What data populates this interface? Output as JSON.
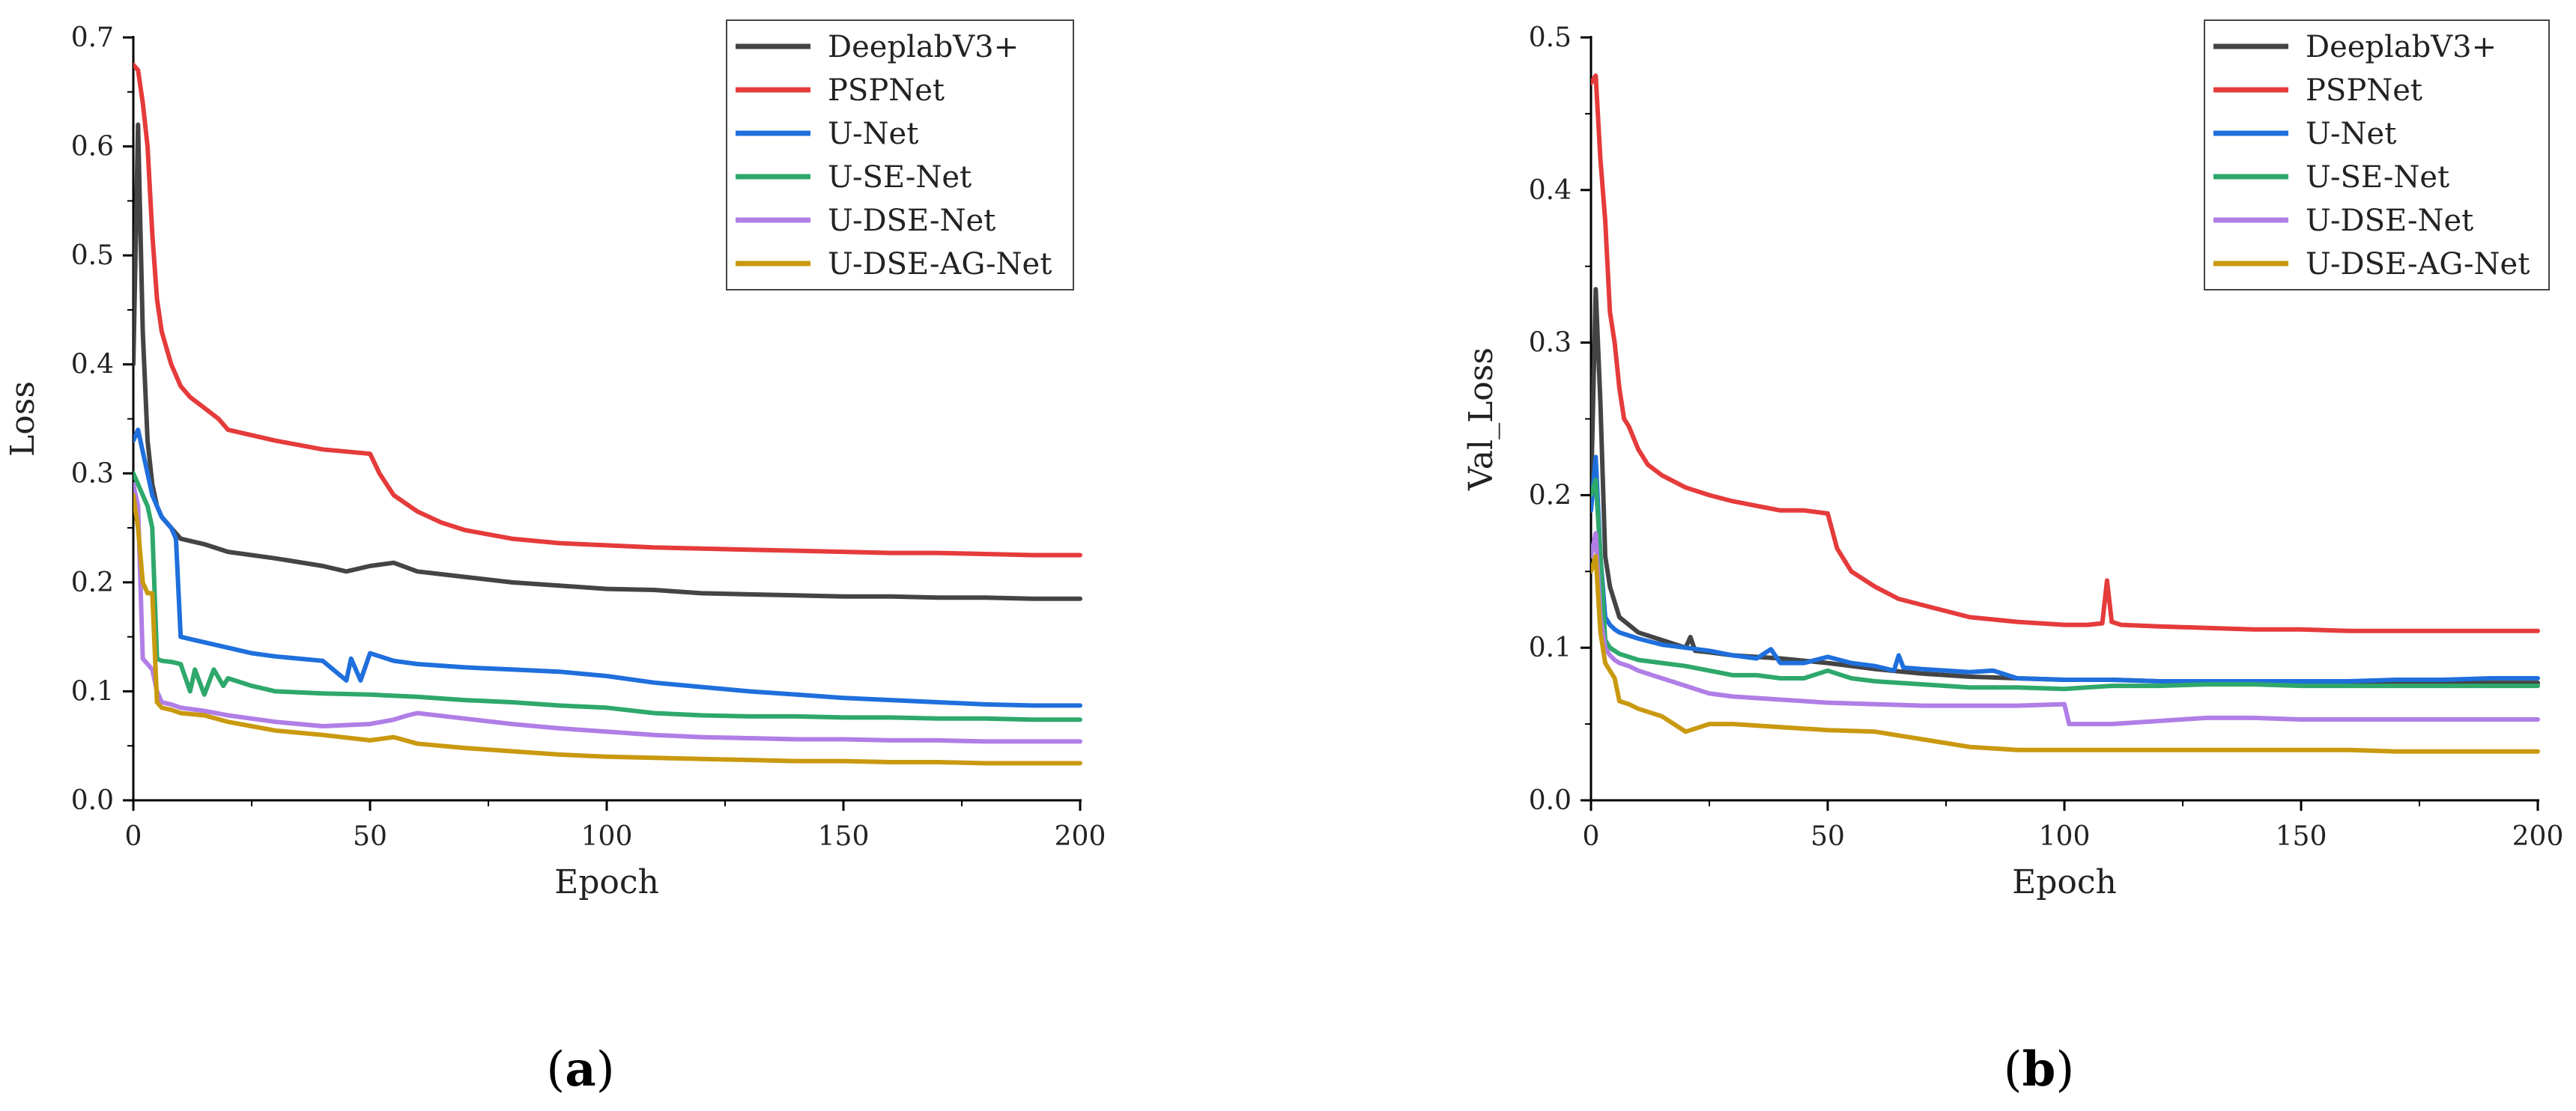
{
  "chart_data": [
    {
      "type": "line",
      "panel_label": "(a)",
      "title": "",
      "xlabel": "Epoch",
      "ylabel": "Loss",
      "xlim": [
        0,
        200
      ],
      "ylim": [
        0,
        0.7
      ],
      "xticks": [
        0,
        50,
        100,
        150,
        200
      ],
      "yticks": [
        0.0,
        0.1,
        0.2,
        0.3,
        0.4,
        0.5,
        0.6,
        0.7
      ],
      "ytick_labels": [
        "0.0",
        "0.1",
        "0.2",
        "0.3",
        "0.4",
        "0.5",
        "0.6",
        "0.7"
      ],
      "legend_position": "top-right",
      "series": [
        {
          "name": "DeeplabV3+",
          "color": "#444444",
          "x": [
            0,
            1,
            2,
            3,
            4,
            5,
            6,
            8,
            10,
            15,
            20,
            30,
            40,
            45,
            50,
            55,
            60,
            70,
            80,
            90,
            100,
            110,
            120,
            130,
            140,
            150,
            160,
            170,
            180,
            190,
            200
          ],
          "y": [
            0.4,
            0.62,
            0.43,
            0.33,
            0.29,
            0.27,
            0.26,
            0.25,
            0.24,
            0.235,
            0.228,
            0.222,
            0.215,
            0.21,
            0.215,
            0.218,
            0.21,
            0.205,
            0.2,
            0.197,
            0.194,
            0.193,
            0.19,
            0.189,
            0.188,
            0.187,
            0.187,
            0.186,
            0.186,
            0.185,
            0.185
          ]
        },
        {
          "name": "PSPNet",
          "color": "#e53b3b",
          "x": [
            0,
            1,
            2,
            3,
            4,
            5,
            6,
            8,
            10,
            12,
            15,
            18,
            20,
            25,
            30,
            35,
            40,
            45,
            50,
            52,
            55,
            60,
            65,
            70,
            80,
            90,
            100,
            110,
            120,
            130,
            140,
            150,
            160,
            170,
            180,
            190,
            200
          ],
          "y": [
            0.675,
            0.67,
            0.64,
            0.6,
            0.52,
            0.46,
            0.43,
            0.4,
            0.38,
            0.37,
            0.36,
            0.35,
            0.34,
            0.335,
            0.33,
            0.326,
            0.322,
            0.32,
            0.318,
            0.3,
            0.28,
            0.265,
            0.255,
            0.248,
            0.24,
            0.236,
            0.234,
            0.232,
            0.231,
            0.23,
            0.229,
            0.228,
            0.227,
            0.227,
            0.226,
            0.225,
            0.225
          ]
        },
        {
          "name": "U-Net",
          "color": "#1f6fdc",
          "x": [
            0,
            1,
            2,
            3,
            4,
            5,
            6,
            8,
            9,
            10,
            12,
            15,
            20,
            25,
            30,
            40,
            45,
            46,
            48,
            50,
            55,
            60,
            70,
            80,
            90,
            100,
            110,
            120,
            130,
            140,
            150,
            160,
            170,
            180,
            190,
            200
          ],
          "y": [
            0.33,
            0.34,
            0.32,
            0.3,
            0.28,
            0.27,
            0.26,
            0.25,
            0.24,
            0.15,
            0.148,
            0.145,
            0.14,
            0.135,
            0.132,
            0.128,
            0.11,
            0.13,
            0.11,
            0.135,
            0.128,
            0.125,
            0.122,
            0.12,
            0.118,
            0.114,
            0.108,
            0.104,
            0.1,
            0.097,
            0.094,
            0.092,
            0.09,
            0.088,
            0.087,
            0.087
          ]
        },
        {
          "name": "U-SE-Net",
          "color": "#2ea86b",
          "x": [
            0,
            1,
            2,
            3,
            4,
            5,
            6,
            8,
            10,
            12,
            13,
            15,
            17,
            19,
            20,
            25,
            30,
            40,
            50,
            60,
            70,
            80,
            90,
            100,
            110,
            120,
            130,
            140,
            150,
            160,
            170,
            180,
            190,
            200
          ],
          "y": [
            0.3,
            0.29,
            0.28,
            0.27,
            0.25,
            0.13,
            0.128,
            0.127,
            0.125,
            0.1,
            0.12,
            0.097,
            0.12,
            0.105,
            0.112,
            0.105,
            0.1,
            0.098,
            0.097,
            0.095,
            0.092,
            0.09,
            0.087,
            0.085,
            0.08,
            0.078,
            0.077,
            0.077,
            0.076,
            0.076,
            0.075,
            0.075,
            0.074,
            0.074
          ]
        },
        {
          "name": "U-DSE-Net",
          "color": "#b07ee6",
          "x": [
            0,
            1,
            2,
            3,
            4,
            5,
            6,
            8,
            10,
            15,
            20,
            30,
            40,
            50,
            55,
            58,
            60,
            70,
            80,
            90,
            100,
            110,
            120,
            130,
            140,
            150,
            160,
            170,
            180,
            190,
            200
          ],
          "y": [
            0.29,
            0.27,
            0.13,
            0.125,
            0.12,
            0.1,
            0.09,
            0.088,
            0.085,
            0.082,
            0.078,
            0.072,
            0.068,
            0.07,
            0.074,
            0.078,
            0.08,
            0.075,
            0.07,
            0.066,
            0.063,
            0.06,
            0.058,
            0.057,
            0.056,
            0.056,
            0.055,
            0.055,
            0.054,
            0.054,
            0.054
          ]
        },
        {
          "name": "U-DSE-AG-Net",
          "color": "#c9990f",
          "x": [
            0,
            1,
            2,
            3,
            4,
            5,
            6,
            8,
            10,
            15,
            20,
            25,
            30,
            40,
            50,
            55,
            60,
            70,
            80,
            90,
            100,
            110,
            120,
            130,
            140,
            150,
            160,
            170,
            180,
            190,
            200
          ],
          "y": [
            0.28,
            0.25,
            0.2,
            0.19,
            0.19,
            0.09,
            0.085,
            0.083,
            0.08,
            0.078,
            0.072,
            0.068,
            0.064,
            0.06,
            0.055,
            0.058,
            0.052,
            0.048,
            0.045,
            0.042,
            0.04,
            0.039,
            0.038,
            0.037,
            0.036,
            0.036,
            0.035,
            0.035,
            0.034,
            0.034,
            0.034
          ]
        }
      ]
    },
    {
      "type": "line",
      "panel_label": "(b)",
      "title": "",
      "xlabel": "Epoch",
      "ylabel": "Val_Loss",
      "xlim": [
        0,
        200
      ],
      "ylim": [
        0,
        0.5
      ],
      "xticks": [
        0,
        50,
        100,
        150,
        200
      ],
      "yticks": [
        0.0,
        0.1,
        0.2,
        0.3,
        0.4,
        0.5
      ],
      "ytick_labels": [
        "0.0",
        "0.1",
        "0.2",
        "0.3",
        "0.4",
        "0.5"
      ],
      "legend_position": "top-right",
      "series": [
        {
          "name": "DeeplabV3+",
          "color": "#444444",
          "x": [
            0,
            1,
            2,
            3,
            4,
            5,
            6,
            8,
            10,
            15,
            20,
            21,
            22,
            25,
            30,
            40,
            50,
            60,
            70,
            80,
            90,
            100,
            110,
            120,
            130,
            140,
            150,
            160,
            170,
            180,
            190,
            200
          ],
          "y": [
            0.2,
            0.335,
            0.26,
            0.16,
            0.14,
            0.13,
            0.12,
            0.115,
            0.11,
            0.105,
            0.1,
            0.107,
            0.098,
            0.097,
            0.095,
            0.093,
            0.09,
            0.086,
            0.083,
            0.081,
            0.08,
            0.079,
            0.079,
            0.078,
            0.078,
            0.078,
            0.077,
            0.077,
            0.077,
            0.077,
            0.077,
            0.077
          ]
        },
        {
          "name": "PSPNet",
          "color": "#e53b3b",
          "x": [
            0,
            1,
            2,
            3,
            4,
            5,
            6,
            7,
            8,
            10,
            12,
            15,
            20,
            25,
            30,
            35,
            40,
            45,
            50,
            52,
            55,
            60,
            65,
            70,
            80,
            90,
            100,
            105,
            108,
            109,
            110,
            112,
            120,
            130,
            140,
            150,
            160,
            170,
            180,
            190,
            200
          ],
          "y": [
            0.47,
            0.475,
            0.42,
            0.38,
            0.32,
            0.3,
            0.27,
            0.25,
            0.245,
            0.23,
            0.22,
            0.213,
            0.205,
            0.2,
            0.196,
            0.193,
            0.19,
            0.19,
            0.188,
            0.165,
            0.15,
            0.14,
            0.132,
            0.128,
            0.12,
            0.117,
            0.115,
            0.115,
            0.116,
            0.144,
            0.117,
            0.115,
            0.114,
            0.113,
            0.112,
            0.112,
            0.111,
            0.111,
            0.111,
            0.111,
            0.111
          ]
        },
        {
          "name": "U-Net",
          "color": "#1f6fdc",
          "x": [
            0,
            1,
            2,
            3,
            4,
            5,
            6,
            8,
            10,
            15,
            20,
            25,
            30,
            35,
            38,
            40,
            45,
            50,
            55,
            60,
            64,
            65,
            66,
            70,
            80,
            85,
            90,
            100,
            110,
            120,
            130,
            140,
            150,
            160,
            170,
            180,
            190,
            200
          ],
          "y": [
            0.19,
            0.225,
            0.16,
            0.12,
            0.115,
            0.112,
            0.11,
            0.108,
            0.106,
            0.102,
            0.1,
            0.098,
            0.095,
            0.093,
            0.099,
            0.09,
            0.09,
            0.094,
            0.09,
            0.088,
            0.085,
            0.095,
            0.087,
            0.086,
            0.084,
            0.085,
            0.08,
            0.079,
            0.079,
            0.078,
            0.078,
            0.078,
            0.078,
            0.078,
            0.079,
            0.079,
            0.08,
            0.08
          ]
        },
        {
          "name": "U-SE-Net",
          "color": "#2ea86b",
          "x": [
            0,
            1,
            2,
            3,
            4,
            5,
            6,
            8,
            10,
            15,
            20,
            25,
            30,
            35,
            40,
            45,
            50,
            55,
            60,
            70,
            80,
            90,
            100,
            110,
            120,
            130,
            140,
            150,
            160,
            170,
            180,
            190,
            200
          ],
          "y": [
            0.2,
            0.21,
            0.16,
            0.105,
            0.1,
            0.098,
            0.096,
            0.094,
            0.092,
            0.09,
            0.088,
            0.085,
            0.082,
            0.082,
            0.08,
            0.08,
            0.085,
            0.08,
            0.078,
            0.076,
            0.074,
            0.074,
            0.073,
            0.075,
            0.075,
            0.076,
            0.076,
            0.075,
            0.075,
            0.075,
            0.075,
            0.075,
            0.075
          ]
        },
        {
          "name": "U-DSE-Net",
          "color": "#b07ee6",
          "x": [
            0,
            1,
            2,
            3,
            4,
            5,
            6,
            8,
            10,
            15,
            20,
            25,
            30,
            40,
            50,
            60,
            70,
            80,
            90,
            100,
            101,
            110,
            120,
            130,
            140,
            150,
            160,
            170,
            180,
            190,
            200
          ],
          "y": [
            0.16,
            0.175,
            0.12,
            0.1,
            0.095,
            0.092,
            0.09,
            0.088,
            0.085,
            0.08,
            0.075,
            0.07,
            0.068,
            0.066,
            0.064,
            0.063,
            0.062,
            0.062,
            0.062,
            0.063,
            0.05,
            0.05,
            0.052,
            0.054,
            0.054,
            0.053,
            0.053,
            0.053,
            0.053,
            0.053,
            0.053
          ]
        },
        {
          "name": "U-DSE-AG-Net",
          "color": "#c9990f",
          "x": [
            0,
            1,
            2,
            3,
            4,
            5,
            6,
            8,
            10,
            15,
            20,
            25,
            30,
            40,
            50,
            60,
            70,
            80,
            90,
            100,
            110,
            120,
            130,
            140,
            150,
            160,
            170,
            180,
            190,
            200
          ],
          "y": [
            0.15,
            0.16,
            0.11,
            0.09,
            0.085,
            0.08,
            0.065,
            0.063,
            0.06,
            0.055,
            0.045,
            0.05,
            0.05,
            0.048,
            0.046,
            0.045,
            0.04,
            0.035,
            0.033,
            0.033,
            0.033,
            0.033,
            0.033,
            0.033,
            0.033,
            0.033,
            0.032,
            0.032,
            0.032,
            0.032
          ]
        }
      ]
    }
  ]
}
